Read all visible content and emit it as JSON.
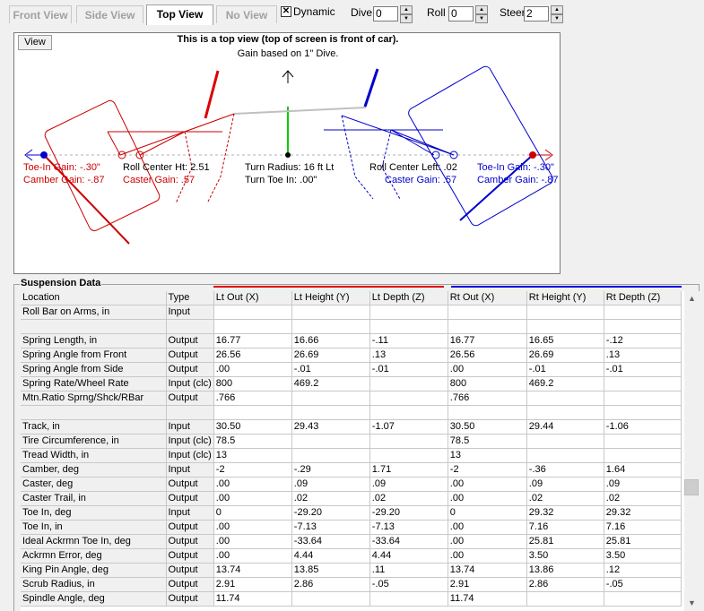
{
  "toolbar": {
    "tabs": [
      {
        "label": "Front View",
        "active": false
      },
      {
        "label": "Side View",
        "active": false
      },
      {
        "label": "Top View",
        "active": true
      },
      {
        "label": "No View",
        "active": false
      }
    ],
    "dynamic_label": "Dynamic",
    "dynamic_checked": true,
    "dive_label": "Dive",
    "dive_value": "0",
    "roll_label": "Roll",
    "roll_value": "0",
    "steer_label": "Steer",
    "steer_value": "2"
  },
  "view": {
    "button_label": "View",
    "title": "This is a top view (top of screen is front of car).",
    "subtitle": "Gain based on 1\" Dive.",
    "left_toe_gain": "Toe-In Gain: -.30\"",
    "left_camber_gain": "Camber Gain: -.87",
    "roll_center_ht": "Roll Center Ht: 2.51",
    "left_caster_gain": "Caster Gain: .57",
    "turn_radius": "Turn Radius: 16 ft Lt",
    "turn_toe_in": "Turn Toe In: .00\"",
    "roll_center_left": "Roll Center Left: .02",
    "right_caster_gain": "Caster Gain: .57",
    "right_toe_gain": "Toe-In Gain: -.30\"",
    "right_camber_gain": "Camber Gain: -.87",
    "colors": {
      "left": "#cc0000",
      "right": "#0000cc",
      "center": "#00cc00"
    }
  },
  "suspension": {
    "title": "Suspension Data",
    "columns": [
      "Location",
      "Type",
      "Lt Out (X)",
      "Lt Height (Y)",
      "Lt Depth (Z)",
      "Rt Out (X)",
      "Rt Height (Y)",
      "Rt Depth (Z)"
    ],
    "rows": [
      [
        "Roll Bar on Arms, in",
        "Input",
        "",
        "",
        "",
        "",
        "",
        ""
      ],
      [
        "",
        "",
        "",
        "",
        "",
        "",
        "",
        ""
      ],
      [
        "Spring Length, in",
        "Output",
        "16.77",
        "16.66",
        "-.11",
        "16.77",
        "16.65",
        "-.12"
      ],
      [
        "Spring Angle from Front",
        "Output",
        "26.56",
        "26.69",
        ".13",
        "26.56",
        "26.69",
        ".13"
      ],
      [
        "Spring Angle from Side",
        "Output",
        ".00",
        "-.01",
        "-.01",
        ".00",
        "-.01",
        "-.01"
      ],
      [
        "Spring Rate/Wheel Rate",
        "Input (clc)",
        "800",
        "469.2",
        "",
        "800",
        "469.2",
        ""
      ],
      [
        "Mtn.Ratio Sprng/Shck/RBar",
        "Output",
        ".766",
        "",
        "",
        ".766",
        "",
        ""
      ],
      [
        "",
        "",
        "",
        "",
        "",
        "",
        "",
        ""
      ],
      [
        "Track, in",
        "Input",
        "30.50",
        "29.43",
        "-1.07",
        "30.50",
        "29.44",
        "-1.06"
      ],
      [
        "Tire Circumference, in",
        "Input (clc)",
        "78.5",
        "",
        "",
        "78.5",
        "",
        ""
      ],
      [
        "Tread Width, in",
        "Input (clc)",
        "13",
        "",
        "",
        "13",
        "",
        ""
      ],
      [
        "Camber, deg",
        "Input",
        "-2",
        "-.29",
        "1.71",
        "-2",
        "-.36",
        "1.64"
      ],
      [
        "Caster, deg",
        "Output",
        ".00",
        ".09",
        ".09",
        ".00",
        ".09",
        ".09"
      ],
      [
        "Caster Trail, in",
        "Output",
        ".00",
        ".02",
        ".02",
        ".00",
        ".02",
        ".02"
      ],
      [
        "Toe In, deg",
        "Input",
        "0",
        "-29.20",
        "-29.20",
        "0",
        "29.32",
        "29.32"
      ],
      [
        "Toe In, in",
        "Output",
        ".00",
        "-7.13",
        "-7.13",
        ".00",
        "7.16",
        "7.16"
      ],
      [
        "Ideal Ackrmn Toe In, deg",
        "Output",
        ".00",
        "-33.64",
        "-33.64",
        ".00",
        "25.81",
        "25.81"
      ],
      [
        "Ackrmn Error, deg",
        "Output",
        ".00",
        "4.44",
        "4.44",
        ".00",
        "3.50",
        "3.50"
      ],
      [
        "King Pin Angle, deg",
        "Output",
        "13.74",
        "13.85",
        ".11",
        "13.74",
        "13.86",
        ".12"
      ],
      [
        "Scrub Radius, in",
        "Output",
        "2.91",
        "2.86",
        "-.05",
        "2.91",
        "2.86",
        "-.05"
      ],
      [
        "Spindle Angle, deg",
        "Output",
        "11.74",
        "",
        "",
        "11.74",
        "",
        ""
      ]
    ]
  }
}
